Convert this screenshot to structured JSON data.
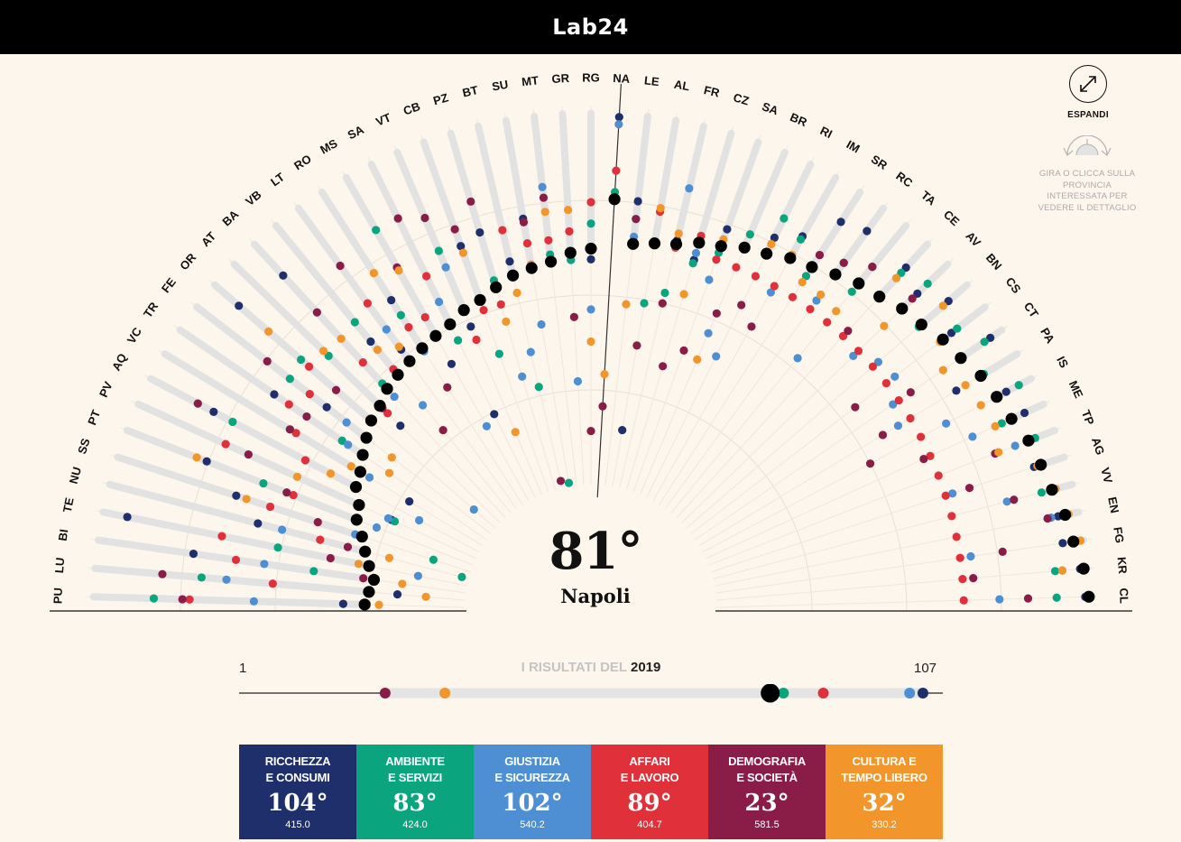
{
  "header": {
    "logo": "Lab24"
  },
  "colors": {
    "ricchezza": "#1f2f6b",
    "ambiente": "#0aa57f",
    "giustizia": "#4d8fd2",
    "affari": "#e0303a",
    "demografia": "#8a1d47",
    "cultura": "#f2952a",
    "rank_marker": "#000000"
  },
  "controls": {
    "expand_label": "ESPANDI",
    "hint": "GIRA O CLICCA SULLA PROVINCIA INTERESSATA PER VEDERE IL DETTAGLIO"
  },
  "selected": {
    "rank": "81°",
    "name": "Napoli",
    "code": "NA"
  },
  "provinces": [
    {
      "code": "PU",
      "total": 29,
      "dots": {
        "ricchezza": 35,
        "ambiente": 88,
        "giustizia": 60,
        "affari": 78,
        "demografia": 80,
        "cultura": 25
      }
    },
    {
      "code": "LU",
      "total": 28,
      "dots": {
        "ricchezza": 20,
        "ambiente": 75,
        "giustizia": 68,
        "affari": 55,
        "demografia": 86,
        "cultura": 12
      }
    },
    {
      "code": "BI",
      "total": 27,
      "dots": {
        "ricchezza": 78,
        "ambiente": 44,
        "giustizia": 58,
        "affari": 66,
        "demografia": 30,
        "cultura": 19
      }
    },
    {
      "code": "TE",
      "total": 29,
      "dots": {
        "ricchezza": 98,
        "ambiente": 55,
        "giustizia": 15,
        "affari": 71,
        "demografia": 40,
        "cultura": 32
      }
    },
    {
      "code": "NU",
      "total": 31,
      "dots": {
        "ricchezza": 62,
        "ambiente": 3,
        "giustizia": 55,
        "affari": 44,
        "demografia": 36,
        "cultura": 24
      }
    },
    {
      "code": "SS",
      "total": 33,
      "dots": {
        "ricchezza": 70,
        "ambiente": 12,
        "giustizia": 35,
        "affari": 60,
        "demografia": 46,
        "cultura": 67
      }
    },
    {
      "code": "PT",
      "total": 36,
      "dots": {
        "ricchezza": 81,
        "ambiente": 64,
        "giustizia": 30,
        "affari": 55,
        "demografia": 57,
        "cultura": 84
      }
    },
    {
      "code": "PV",
      "total": 37,
      "dots": {
        "ricchezza": 27,
        "ambiente": 26,
        "giustizia": 28,
        "affari": 78,
        "demografia": 71,
        "cultura": 56
      }
    },
    {
      "code": "AQ",
      "total": 40,
      "dots": {
        "ricchezza": 85,
        "ambiente": 79,
        "giustizia": 20,
        "affari": 56,
        "demografia": 90,
        "cultura": 48
      }
    },
    {
      "code": "VC",
      "total": 41,
      "dots": {
        "ricchezza": 25,
        "ambiente": 64,
        "giustizia": 38,
        "affari": 62,
        "demografia": 64,
        "cultura": 44
      }
    },
    {
      "code": "TR",
      "total": 43,
      "dots": {
        "ricchezza": 73,
        "ambiente": 50,
        "giustizia": 48,
        "affari": 68,
        "demografia": 62,
        "cultura": 34
      }
    },
    {
      "code": "FE",
      "total": 45,
      "dots": {
        "ricchezza": 59,
        "ambiente": 72,
        "giustizia": 52,
        "affari": 65,
        "demografia": 80,
        "cultura": 36
      }
    },
    {
      "code": "OR",
      "total": 47,
      "dots": {
        "ricchezza": 96,
        "ambiente": 73,
        "giustizia": 9,
        "affari": 70,
        "demografia": 60,
        "cultura": 85
      }
    },
    {
      "code": "AT",
      "total": 48,
      "dots": {
        "ricchezza": 40,
        "ambiente": 68,
        "giustizia": 48,
        "affari": 45,
        "demografia": 47,
        "cultura": 70
      }
    },
    {
      "code": "BA",
      "total": 50,
      "dots": {
        "ricchezza": 93,
        "ambiente": 52,
        "giustizia": 47,
        "affari": 60,
        "demografia": 79,
        "cultura": 69
      }
    },
    {
      "code": "VB",
      "total": 51,
      "dots": {
        "ricchezza": 63,
        "ambiente": 70,
        "giustizia": 40,
        "affari": 53,
        "demografia": 31,
        "cultura": 60
      }
    },
    {
      "code": "LT",
      "total": 52,
      "dots": {
        "ricchezza": 56,
        "ambiente": 52,
        "giustizia": 63,
        "affari": 72,
        "demografia": 85,
        "cultura": 57
      }
    },
    {
      "code": "RO",
      "total": 53,
      "dots": {
        "ricchezza": 69,
        "ambiente": 64,
        "giustizia": 52,
        "affari": 60,
        "demografia": 40,
        "cultura": 78
      }
    },
    {
      "code": "MS",
      "total": 54,
      "dots": {
        "ricchezza": 45,
        "ambiente": 88,
        "giustizia": 25,
        "affari": 60,
        "demografia": 76,
        "cultura": 75
      }
    },
    {
      "code": "SA",
      "total": 55,
      "dots": {
        "ricchezza": 27,
        "ambiente": 50,
        "giustizia": 62,
        "affari": 70,
        "demografia": 88,
        "cultura": 55
      }
    },
    {
      "code": "VT",
      "total": 57,
      "dots": {
        "ricchezza": 52,
        "ambiente": 75,
        "giustizia": 70,
        "affari": 48,
        "demografia": 85,
        "cultura": 20
      }
    },
    {
      "code": "CB",
      "total": 58,
      "dots": {
        "ricchezza": 74,
        "ambiente": 42,
        "giustizia": 58,
        "affari": 55,
        "demografia": 79,
        "cultura": 72
      }
    },
    {
      "code": "PZ",
      "total": 60,
      "dots": {
        "ricchezza": 76,
        "ambiente": 62,
        "giustizia": 34,
        "affari": 55,
        "demografia": 85,
        "cultura": 50
      }
    },
    {
      "code": "BT",
      "total": 62,
      "dots": {
        "ricchezza": 66,
        "ambiente": 30,
        "giustizia": 40,
        "affari": 75,
        "demografia": 3,
        "cultura": 57
      }
    },
    {
      "code": "SU",
      "total": 63,
      "dots": {
        "ricchezza": 77,
        "ambiente": 2,
        "giustizia": 47,
        "affari": 70,
        "demografia": 76,
        "cultura": 64
      }
    },
    {
      "code": "MT",
      "total": 64,
      "dots": {
        "ricchezza": 64,
        "ambiente": 66,
        "giustizia": 85,
        "affari": 70,
        "demografia": 82,
        "cultura": 78
      }
    },
    {
      "code": "GR",
      "total": 66,
      "dots": {
        "ricchezza": 64,
        "ambiente": 64,
        "giustizia": 30,
        "affari": 72,
        "demografia": 48,
        "cultura": 78
      }
    },
    {
      "code": "RG",
      "total": 67,
      "dots": {
        "ricchezza": 64,
        "ambiente": 74,
        "giustizia": 50,
        "affari": 80,
        "demografia": 16,
        "cultura": 41
      }
    },
    {
      "code": "NA",
      "total": 81,
      "dots": {
        "ricchezza": 104,
        "ambiente": 83,
        "giustizia": 102,
        "affari": 89,
        "demografia": 23,
        "cultura": 32
      }
    },
    {
      "code": "LE",
      "total": 69,
      "dots": {
        "ricchezza": 81,
        "ambiente": 76,
        "giustizia": 71,
        "affari": 69,
        "demografia": 76,
        "cultura": 52
      }
    },
    {
      "code": "AL",
      "total": 70,
      "dots": {
        "ricchezza": 17,
        "ambiente": 53,
        "giustizia": 70,
        "affari": 79,
        "demografia": 41,
        "cultura": 80
      }
    },
    {
      "code": "FR",
      "total": 71,
      "dots": {
        "ricchezza": 72,
        "ambiente": 57,
        "giustizia": 87,
        "affari": 70,
        "demografia": 54,
        "cultura": 74
      }
    },
    {
      "code": "CZ",
      "total": 73,
      "dots": {
        "ricchezza": 68,
        "ambiente": 67,
        "giustizia": 70,
        "affari": 75,
        "demografia": 37,
        "cultura": 58
      }
    },
    {
      "code": "SA",
      "total": 74,
      "dots": {
        "ricchezza": 79,
        "ambiente": 72,
        "giustizia": 64,
        "affari": 70,
        "demografia": 43,
        "cultura": 76
      }
    },
    {
      "code": "BR",
      "total": 76,
      "dots": {
        "ricchezza": 76,
        "ambiente": 80,
        "giustizia": 50,
        "affari": 70,
        "demografia": 56,
        "cultura": 42
      }
    },
    {
      "code": "RI",
      "total": 77,
      "dots": {
        "ricchezza": 82,
        "ambiente": 88,
        "giustizia": 45,
        "affari": 70,
        "demografia": 61,
        "cultura": 80
      }
    },
    {
      "code": "IM",
      "total": 79,
      "dots": {
        "ricchezza": 86,
        "ambiente": 85,
        "giustizia": 68,
        "affari": 70,
        "demografia": 57,
        "cultura": 80
      }
    },
    {
      "code": "SR",
      "total": 80,
      "dots": {
        "ricchezza": 95,
        "ambiente": 77,
        "giustizia": 84,
        "affari": 70,
        "demografia": 84,
        "cultura": 75
      }
    },
    {
      "code": "RC",
      "total": 82,
      "dots": {
        "ricchezza": 97,
        "ambiente": 86,
        "giustizia": 73,
        "affari": 70,
        "demografia": 86,
        "cultura": 75
      }
    },
    {
      "code": "TA",
      "total": 84,
      "dots": {
        "ricchezza": 90,
        "ambiente": 81,
        "giustizia": 57,
        "affari": 70,
        "demografia": 90,
        "cultura": 74
      }
    },
    {
      "code": "CE",
      "total": 85,
      "dots": {
        "ricchezza": 96,
        "ambiente": 94,
        "giustizia": 70,
        "affari": 70,
        "demografia": 72,
        "cultura": 92
      }
    },
    {
      "code": "AV",
      "total": 87,
      "dots": {
        "ricchezza": 93,
        "ambiente": 97,
        "giustizia": 68,
        "affari": 70,
        "demografia": 91,
        "cultura": 80
      }
    },
    {
      "code": "BN",
      "total": 88,
      "dots": {
        "ricchezza": 98,
        "ambiente": 87,
        "giustizia": 72,
        "affari": 70,
        "demografia": 88,
        "cultura": 96
      }
    },
    {
      "code": "CS",
      "total": 90,
      "dots": {
        "ricchezza": 93,
        "ambiente": 95,
        "giustizia": 73,
        "affari": 70,
        "demografia": 59,
        "cultura": 89
      }
    },
    {
      "code": "CT",
      "total": 91,
      "dots": {
        "ricchezza": 101,
        "ambiente": 99,
        "giustizia": 68,
        "affari": 70,
        "demografia": 74,
        "cultura": 85
      }
    },
    {
      "code": "PA",
      "total": 93,
      "dots": {
        "ricchezza": 85,
        "ambiente": 94,
        "giustizia": 66,
        "affari": 70,
        "demografia": 61,
        "cultura": 88
      }
    },
    {
      "code": "IS",
      "total": 94,
      "dots": {
        "ricchezza": 97,
        "ambiente": 101,
        "giustizia": 78,
        "affari": 70,
        "demografia": 54,
        "cultura": 89
      }
    },
    {
      "code": "ME",
      "total": 95,
      "dots": {
        "ricchezza": 99,
        "ambiente": 92,
        "giustizia": 83,
        "affari": 70,
        "demografia": 68,
        "cultura": 90
      }
    },
    {
      "code": "TP",
      "total": 97,
      "dots": {
        "ricchezza": 98,
        "ambiente": 99,
        "giustizia": 93,
        "affari": 70,
        "demografia": 87,
        "cultura": 88
      }
    },
    {
      "code": "AG",
      "total": 98,
      "dots": {
        "ricchezza": 96,
        "ambiente": 97,
        "giustizia": 72,
        "affari": 70,
        "demografia": 77,
        "cultura": 97
      }
    },
    {
      "code": "VV",
      "total": 99,
      "dots": {
        "ricchezza": 100,
        "ambiente": 96,
        "giustizia": 86,
        "affari": 70,
        "demografia": 88,
        "cultura": 100
      }
    },
    {
      "code": "EN",
      "total": 101,
      "dots": {
        "ricchezza": 99,
        "ambiente": 96,
        "giustizia": 97,
        "affari": 70,
        "demografia": 96,
        "cultura": 102
      }
    },
    {
      "code": "FG",
      "total": 102,
      "dots": {
        "ricchezza": 99,
        "ambiente": 103,
        "giustizia": 73,
        "affari": 70,
        "demografia": 82,
        "cultura": 104
      }
    },
    {
      "code": "KR",
      "total": 104,
      "dots": {
        "ricchezza": 103,
        "ambiente": 96,
        "giustizia": 98,
        "affari": 70,
        "demografia": 73,
        "cultura": 98
      }
    },
    {
      "code": "CL",
      "total": 105,
      "dots": {
        "ricchezza": 104,
        "ambiente": 96,
        "giustizia": 80,
        "affari": 70,
        "demografia": 88,
        "cultura": 105
      }
    }
  ],
  "scale": {
    "min_label": "1",
    "max_label": "107",
    "title_prefix": "I RISULTATI DEL",
    "year": "2019",
    "min": 1,
    "max": 107,
    "overall": 81
  },
  "categories": [
    {
      "key": "ricchezza",
      "label_line1": "RICCHEZZA",
      "label_line2": "E CONSUMI",
      "rank": "104°",
      "rank_value": 104,
      "score": "415.0"
    },
    {
      "key": "ambiente",
      "label_line1": "AMBIENTE",
      "label_line2": "E SERVIZI",
      "rank": "83°",
      "rank_value": 83,
      "score": "424.0"
    },
    {
      "key": "giustizia",
      "label_line1": "GIUSTIZIA",
      "label_line2": "E SICUREZZA",
      "rank": "102°",
      "rank_value": 102,
      "score": "540.2"
    },
    {
      "key": "affari",
      "label_line1": "AFFARI",
      "label_line2": "E LAVORO",
      "rank": "89°",
      "rank_value": 89,
      "score": "404.7"
    },
    {
      "key": "demografia",
      "label_line1": "DEMOGRAFIA",
      "label_line2": "E SOCIETÀ",
      "rank": "23°",
      "rank_value": 23,
      "score": "581.5"
    },
    {
      "key": "cultura",
      "label_line1": "CULTURA E",
      "label_line2": "TEMPO LIBERO",
      "rank": "32°",
      "rank_value": 32,
      "score": "330.2"
    }
  ]
}
